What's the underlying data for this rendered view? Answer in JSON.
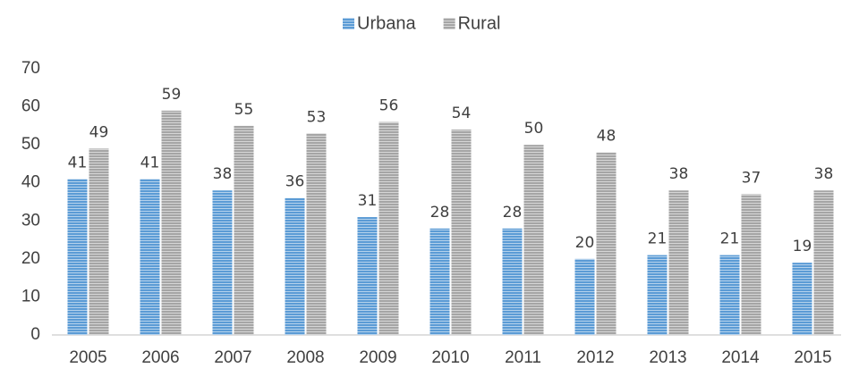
{
  "chart_data": {
    "type": "bar",
    "categories": [
      "2005",
      "2006",
      "2007",
      "2008",
      "2009",
      "2010",
      "2011",
      "2012",
      "2013",
      "2014",
      "2015"
    ],
    "series": [
      {
        "name": "Urbana",
        "color": "#5b9bd5",
        "values": [
          41,
          41,
          38,
          36,
          31,
          28,
          28,
          20,
          21,
          21,
          19
        ]
      },
      {
        "name": "Rural",
        "color": "#a5a5a5",
        "values": [
          49,
          59,
          55,
          53,
          56,
          54,
          50,
          48,
          38,
          37,
          38
        ]
      }
    ],
    "ylim": [
      0,
      70
    ],
    "yticks": [
      0,
      10,
      20,
      30,
      40,
      50,
      60,
      70
    ],
    "grid": false,
    "legend": "top"
  }
}
